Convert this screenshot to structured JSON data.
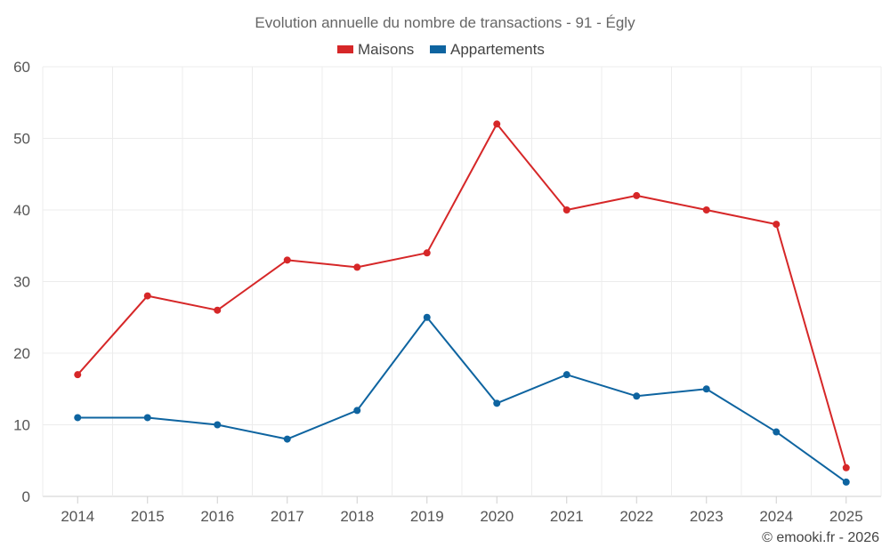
{
  "chart_data": {
    "type": "line",
    "title": "Evolution annuelle du nombre de transactions - 91 - Égly",
    "categories": [
      "2014",
      "2015",
      "2016",
      "2017",
      "2018",
      "2019",
      "2020",
      "2021",
      "2022",
      "2023",
      "2024",
      "2025"
    ],
    "series": [
      {
        "name": "Maisons",
        "color": "#d62728",
        "values": [
          17,
          28,
          26,
          33,
          32,
          34,
          52,
          40,
          42,
          40,
          38,
          4
        ]
      },
      {
        "name": "Appartements",
        "color": "#0e64a0",
        "values": [
          11,
          11,
          10,
          8,
          12,
          25,
          13,
          17,
          14,
          15,
          9,
          2
        ]
      }
    ],
    "ylim": [
      0,
      60
    ],
    "yticks": [
      0,
      10,
      20,
      30,
      40,
      50,
      60
    ],
    "xlabel": "",
    "ylabel": "",
    "grid": true,
    "legend_position": "top-center"
  },
  "footer": {
    "credit": "© emooki.fr - 2026"
  }
}
